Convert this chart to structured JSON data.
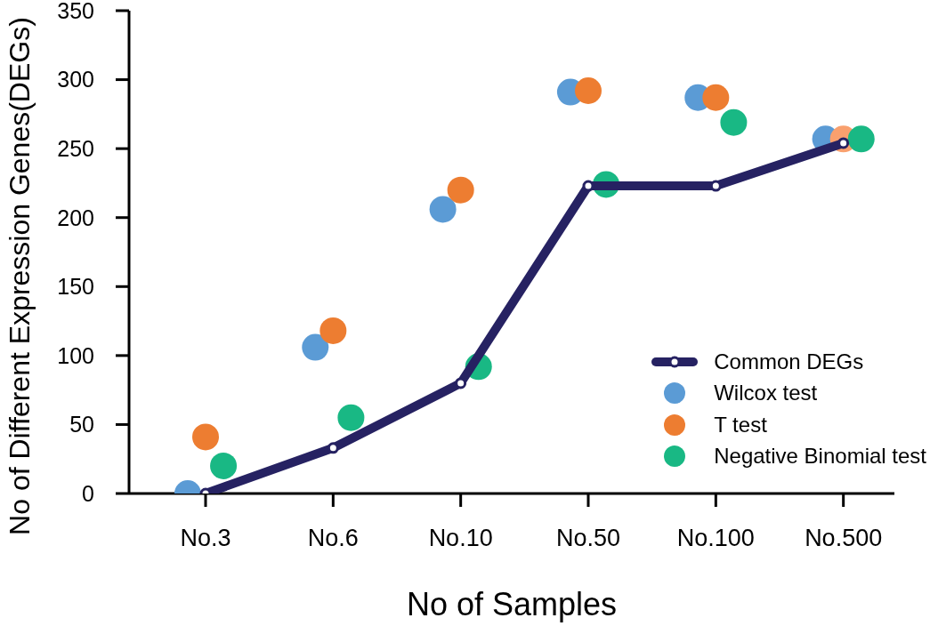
{
  "chart_data": {
    "type": "scatter",
    "xlabel": "No of Samples",
    "ylabel": "No of Different Expression Genes(DEGs)",
    "categories": [
      "No.3",
      "No.6",
      "No.10",
      "No.50",
      "No.100",
      "No.500"
    ],
    "ylim": [
      0,
      350
    ],
    "yticks": [
      0,
      50,
      100,
      150,
      200,
      250,
      300,
      350
    ],
    "legend": "bottom right",
    "marker": "circle",
    "series": [
      {
        "name": "Common DEGs",
        "type": "line",
        "color": "#262262",
        "values": [
          0,
          33,
          80,
          223,
          223,
          254
        ]
      },
      {
        "name": "Wilcox test",
        "color": "#5b9bd5",
        "values": [
          0,
          106,
          206,
          291,
          287,
          257
        ]
      },
      {
        "name": "T test",
        "color": "#ed7d31",
        "colors": [
          "#ed7d31",
          "#ed7d31",
          "#ed7d31",
          "#ed7d31",
          "#ed7d31",
          "#f9a06e"
        ],
        "values": [
          41,
          118,
          220,
          292,
          287,
          257
        ]
      },
      {
        "name": "Negative Binomial test",
        "color": "#19b884",
        "values": [
          20,
          55,
          92,
          224,
          269,
          257
        ]
      }
    ]
  }
}
